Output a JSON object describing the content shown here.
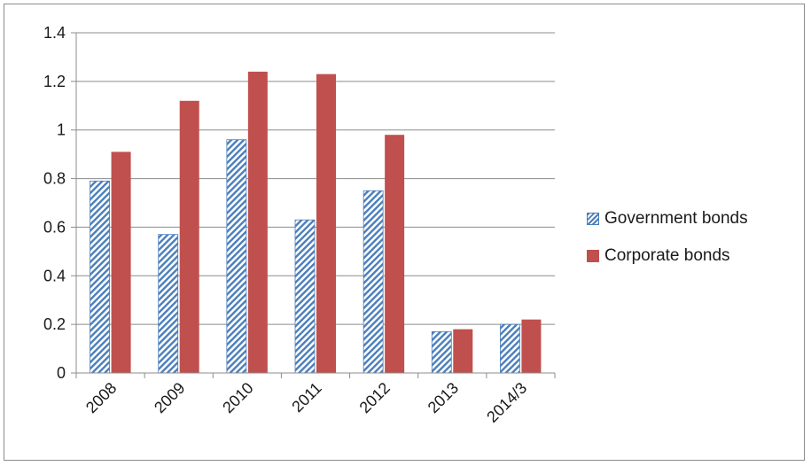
{
  "chart_data": {
    "type": "bar",
    "categories": [
      "2008",
      "2009",
      "2010",
      "2011",
      "2012",
      "2013",
      "2014/3"
    ],
    "series": [
      {
        "name": "Government bonds",
        "values": [
          0.79,
          0.57,
          0.96,
          0.63,
          0.75,
          0.17,
          0.2
        ],
        "color": "#4a7ebb",
        "pattern": "diagonal-hatch"
      },
      {
        "name": "Corporate bonds",
        "values": [
          0.91,
          1.12,
          1.24,
          1.23,
          0.98,
          0.18,
          0.22
        ],
        "color": "#c0504d",
        "pattern": "solid"
      }
    ],
    "ylim": [
      0,
      1.4
    ],
    "yticks": [
      "0",
      "0.2",
      "0.4",
      "0.6",
      "0.8",
      "1",
      "1.2",
      "1.4"
    ],
    "grid": true,
    "legend_position": "right"
  }
}
